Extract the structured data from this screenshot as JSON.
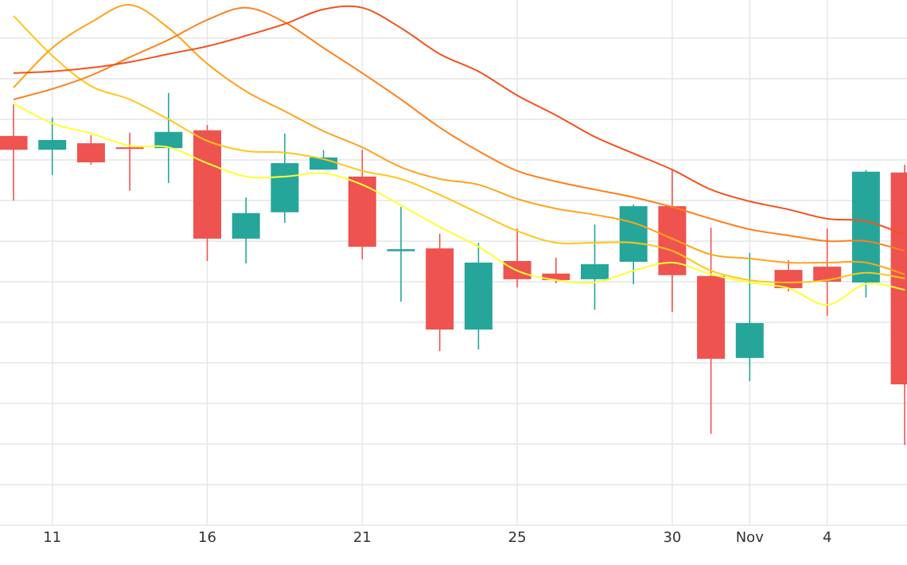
{
  "chart_data": {
    "type": "candlestick",
    "categories": [
      null,
      "11",
      null,
      null,
      null,
      "16",
      null,
      null,
      null,
      "21",
      null,
      null,
      null,
      "25",
      null,
      null,
      null,
      "30",
      null,
      "Nov",
      null,
      "4",
      null,
      null
    ],
    "open": [
      95.9,
      92.5,
      94.1,
      93.1,
      92.9,
      97.3,
      70.6,
      77.1,
      87.6,
      85.9,
      67.5,
      68.2,
      48.2,
      65.1,
      62.0,
      60.6,
      64.9,
      78.6,
      61.4,
      41.2,
      62.9,
      63.7,
      59.8,
      86.9
    ],
    "high": [
      103.7,
      100.4,
      96.1,
      96.7,
      106.5,
      98.6,
      80.8,
      96.5,
      92.4,
      92.5,
      78.4,
      71.8,
      69.6,
      73.1,
      65.9,
      74.1,
      79.0,
      87.5,
      73.3,
      67.1,
      65.3,
      73.1,
      87.5,
      88.8
    ],
    "low": [
      80.0,
      86.3,
      88.8,
      82.4,
      84.3,
      65.1,
      64.5,
      74.5,
      87.6,
      65.5,
      55.1,
      42.9,
      43.3,
      58.6,
      59.6,
      53.1,
      59.4,
      52.5,
      22.5,
      35.5,
      57.6,
      51.6,
      56.1,
      19.8
    ],
    "close": [
      92.5,
      94.9,
      89.4,
      92.7,
      96.9,
      70.6,
      76.9,
      89.2,
      90.6,
      68.6,
      68.0,
      48.2,
      64.7,
      60.6,
      60.4,
      64.3,
      78.6,
      61.6,
      41.0,
      49.8,
      58.4,
      60.0,
      87.1,
      34.7
    ],
    "up_color": "#26a69a",
    "down_color": "#ef5350",
    "series": [
      {
        "color": "#ffff33",
        "values": [
          103.9,
          99.0,
          96.5,
          93.5,
          93.1,
          89.2,
          85.9,
          85.9,
          86.7,
          83.9,
          78.8,
          73.5,
          68.6,
          62.7,
          60.4,
          59.8,
          62.7,
          64.7,
          61.8,
          59.8,
          58.4,
          54.3,
          59.4,
          58.0
        ]
      },
      {
        "color": "#ffc61a",
        "values": [
          125.5,
          115.7,
          108.2,
          104.9,
          100.0,
          94.7,
          92.2,
          91.8,
          90.2,
          87.3,
          85.3,
          81.4,
          76.9,
          72.5,
          69.6,
          69.6,
          69.6,
          67.6,
          62.7,
          60.4,
          59.8,
          60.4,
          62.2,
          60.8
        ]
      },
      {
        "color": "#ffa31a",
        "values": [
          107.8,
          117.6,
          123.9,
          128.2,
          122.5,
          113.7,
          106.9,
          102.0,
          97.1,
          93.1,
          88.2,
          85.3,
          83.9,
          80.4,
          78.0,
          76.5,
          74.5,
          70.6,
          66.7,
          65.7,
          64.7,
          64.7,
          64.7,
          61.8
        ]
      },
      {
        "color": "#ff7f1a",
        "values": [
          104.9,
          107.5,
          110.8,
          115.3,
          119.6,
          124.5,
          127.5,
          123.9,
          117.6,
          111.4,
          104.9,
          98.0,
          92.2,
          87.3,
          84.7,
          82.7,
          80.8,
          78.4,
          75.5,
          72.9,
          71.4,
          70.0,
          70.0,
          67.6
        ]
      },
      {
        "color": "#f4511e",
        "values": [
          111.4,
          111.8,
          112.7,
          114.1,
          116.1,
          118.0,
          120.6,
          123.5,
          127.1,
          127.5,
          122.5,
          116.1,
          111.8,
          105.9,
          101.0,
          95.7,
          91.6,
          87.6,
          82.7,
          79.8,
          77.8,
          75.5,
          74.9,
          71.6
        ]
      }
    ],
    "ylim": [
      0,
      129.4
    ],
    "yticks": [
      10,
      20,
      30,
      40,
      50,
      60,
      70,
      80,
      90,
      100,
      110,
      120
    ],
    "grid": true
  }
}
